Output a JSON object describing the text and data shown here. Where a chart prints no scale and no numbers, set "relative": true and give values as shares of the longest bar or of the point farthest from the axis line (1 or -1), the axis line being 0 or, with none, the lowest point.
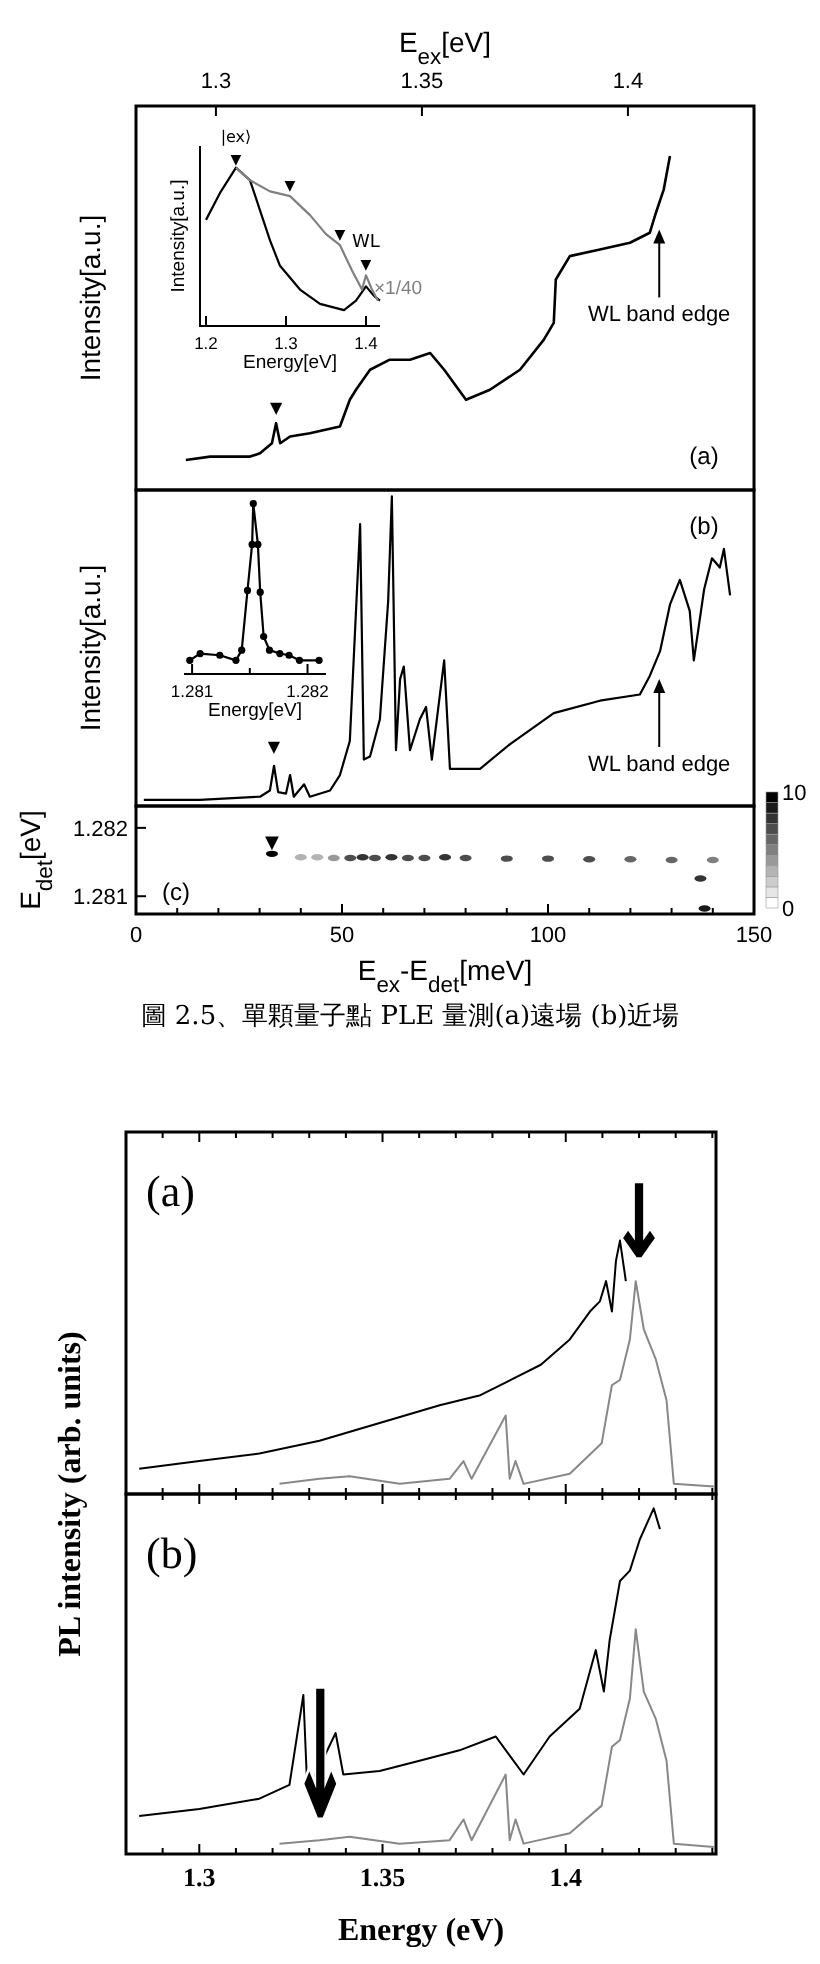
{
  "chart_data": [
    {
      "type": "line",
      "relative": true,
      "xlim": [
        0,
        150
      ],
      "x2lim": [
        1.2806,
        1.4306
      ],
      "x2ticks": [
        1.3,
        1.35,
        1.4
      ],
      "x2label": "E$_{ex}$[eV]",
      "ylabel": "Intensity[a.u.]",
      "tick_labels": false,
      "annotations": [
        "(a)",
        {
          "text": "WL band edge",
          "x": 127,
          "y": 0.78
        },
        {
          "text": "▼",
          "x": 34,
          "y": 0.22
        }
      ],
      "series": [
        {
          "color": "#000000",
          "x": [
            12.1,
            18.0,
            27.7,
            30.1,
            33.0,
            34.0,
            35.0,
            37.4,
            42.2,
            49.5,
            51.9,
            53.4,
            56.8,
            61.6,
            66.5,
            71.4,
            74.8,
            80.1,
            85.9,
            93.2,
            99.0,
            101.4,
            101.9,
            105.3,
            112.6,
            119.9,
            124.7,
            126.2,
            128.1,
            129.6
          ],
          "values": [
            0.09,
            0.1,
            0.1,
            0.11,
            0.14,
            0.2,
            0.14,
            0.16,
            0.17,
            0.19,
            0.27,
            0.3,
            0.36,
            0.39,
            0.39,
            0.41,
            0.36,
            0.27,
            0.3,
            0.36,
            0.45,
            0.5,
            0.63,
            0.7,
            0.72,
            0.74,
            0.77,
            0.83,
            0.9,
            1.0
          ]
        }
      ]
    },
    {
      "type": "line",
      "relative": true,
      "xlim": [
        1.1925,
        1.4175
      ],
      "xticks": [
        1.2,
        1.3,
        1.4
      ],
      "xlabel": "Energy[eV]",
      "ylabel": "Intensity[a.u.]",
      "annotations": [
        {
          "text": "|ex⟩",
          "x": 1.2375,
          "y": 1.0
        },
        {
          "text": "▼",
          "x": 1.2375,
          "y": 1.0
        },
        {
          "text": "▼",
          "x": 1.305,
          "y": 0.82
        },
        {
          "text": "▼",
          "x": 1.3675,
          "y": 0.51
        },
        {
          "text": "▼",
          "x": 1.4,
          "y": 0.32
        },
        {
          "text": "WL",
          "x": 1.4,
          "y": 0.32
        }
      ],
      "series": [
        {
          "color": "#000000",
          "x": [
            1.2,
            1.2175,
            1.2375,
            1.255,
            1.2675,
            1.28,
            1.2925,
            1.3175,
            1.3425,
            1.3725,
            1.3875,
            1.4,
            1.41,
            1.4175
          ],
          "values": [
            0.67,
            0.84,
            1.0,
            0.92,
            0.73,
            0.54,
            0.38,
            0.23,
            0.14,
            0.1,
            0.16,
            0.25,
            0.19,
            0.16
          ]
        },
        {
          "name": "×1/40",
          "color": "#808080",
          "x": [
            1.2375,
            1.255,
            1.28,
            1.305,
            1.33,
            1.35,
            1.3675,
            1.3825,
            1.395,
            1.4,
            1.4075,
            1.415
          ],
          "values": [
            1.0,
            0.92,
            0.85,
            0.82,
            0.7,
            0.58,
            0.51,
            0.35,
            0.23,
            0.32,
            0.23,
            0.16
          ]
        }
      ]
    },
    {
      "type": "line",
      "relative": true,
      "xlim": [
        0,
        150
      ],
      "ylabel": "Intensity[a.u.]",
      "tick_labels": false,
      "annotations": [
        "(b)",
        {
          "text": "WL band edge",
          "x": 127,
          "y": 0.41
        },
        {
          "text": "▼",
          "x": 33.5,
          "y": 0.13
        }
      ],
      "series": [
        {
          "color": "#000000",
          "x": [
            1.9,
            15.5,
            30.1,
            32.5,
            33.5,
            34.5,
            36.4,
            37.4,
            38.3,
            40.8,
            42.2,
            47.1,
            49.5,
            51.9,
            54.4,
            55.3,
            56.8,
            59.2,
            61.2,
            62.1,
            63.1,
            64.1,
            65.0,
            66.5,
            68.9,
            70.4,
            71.8,
            74.8,
            76.2,
            83.5,
            90.8,
            101.4,
            112.6,
            122.3,
            124.7,
            127.2,
            129.6,
            132.0,
            134.4,
            135.4,
            137.9,
            139.8,
            141.7,
            142.7,
            144.2
          ],
          "values": [
            0.02,
            0.02,
            0.03,
            0.05,
            0.13,
            0.045,
            0.04,
            0.1,
            0.03,
            0.07,
            0.03,
            0.05,
            0.1,
            0.21,
            0.91,
            0.15,
            0.16,
            0.28,
            0.66,
            1.0,
            0.18,
            0.41,
            0.45,
            0.18,
            0.28,
            0.32,
            0.15,
            0.47,
            0.12,
            0.12,
            0.2,
            0.3,
            0.34,
            0.36,
            0.42,
            0.5,
            0.65,
            0.73,
            0.63,
            0.47,
            0.7,
            0.8,
            0.77,
            0.83,
            0.68
          ]
        }
      ]
    },
    {
      "type": "line",
      "relative": true,
      "xlim": [
        1.28093,
        1.28216
      ],
      "xticks": [
        1.281,
        {
          "value": 1.2815,
          "label": null
        },
        1.282
      ],
      "xlabel": "Energy[eV]",
      "marker": "circle",
      "series": [
        {
          "color": "#000000",
          "x": [
            1.28098,
            1.28107,
            1.28124,
            1.28138,
            1.28143,
            1.28148,
            1.28152,
            1.28153,
            1.28157,
            1.28159,
            1.28162,
            1.28167,
            1.28176,
            1.28184,
            1.28193,
            1.2821
          ],
          "values": [
            0.08,
            0.12,
            0.11,
            0.08,
            0.14,
            0.49,
            0.76,
            1.0,
            0.76,
            0.48,
            0.22,
            0.14,
            0.12,
            0.11,
            0.08,
            0.08
          ]
        }
      ]
    },
    {
      "type": "scatter",
      "xlim": [
        0,
        150
      ],
      "ylim": [
        1.28074,
        1.28232
      ],
      "xticks": [
        0,
        {
          "value": 10,
          "label": null
        },
        {
          "value": 20,
          "label": null
        },
        {
          "value": 30,
          "label": null
        },
        {
          "value": 40,
          "label": null
        },
        50,
        {
          "value": 60,
          "label": null
        },
        {
          "value": 70,
          "label": null
        },
        {
          "value": 80,
          "label": null
        },
        {
          "value": 90,
          "label": null
        },
        100,
        {
          "value": 110,
          "label": null
        },
        {
          "value": 120,
          "label": null
        },
        {
          "value": 130,
          "label": null
        },
        {
          "value": 140,
          "label": null
        },
        150
      ],
      "yticks": [
        1.281,
        1.282
      ],
      "xlabel": "E$_{ex}$-E$_{det}$[meV]",
      "ylabel": "E$_{det}$[eV]",
      "clim": [
        0,
        10
      ],
      "cticks": [
        0,
        10
      ],
      "annotations": [
        "(c)",
        {
          "text": "▼",
          "x": 33,
          "y": 1.28162
        },
        "圖 2.5、單顆量子點 PLE 量測(a)遠場 (b)近場"
      ],
      "series": [
        {
          "x": [
            33,
            40,
            44,
            48,
            52,
            55,
            58,
            62,
            66,
            70,
            75,
            80,
            90,
            100,
            110,
            120,
            130,
            140,
            137,
            138
          ],
          "values": [
            1.28162,
            1.28157,
            1.28157,
            1.28156,
            1.28156,
            1.28157,
            1.28156,
            1.28157,
            1.28156,
            1.28156,
            1.28157,
            1.28156,
            1.28155,
            1.28155,
            1.28154,
            1.28154,
            1.28153,
            1.28153,
            1.28126,
            1.28082
          ],
          "cvalues": [
            10,
            3,
            3,
            4,
            7,
            8,
            7,
            8,
            7,
            7,
            8,
            7,
            7,
            7,
            7,
            6,
            6,
            5,
            8,
            9
          ]
        }
      ]
    },
    {
      "type": "line",
      "relative": true,
      "xlim": [
        1.28,
        1.441
      ],
      "tick_labels": false,
      "xticks": [
        {
          "value": 1.29,
          "label": null
        },
        1.3,
        {
          "value": 1.31,
          "label": null
        },
        {
          "value": 1.32,
          "label": null
        },
        {
          "value": 1.33,
          "label": null
        },
        {
          "value": 1.34,
          "label": null
        },
        1.35,
        {
          "value": 1.36,
          "label": null
        },
        {
          "value": 1.37,
          "label": null
        },
        {
          "value": 1.38,
          "label": null
        },
        {
          "value": 1.39,
          "label": null
        },
        1.4,
        {
          "value": 1.41,
          "label": null
        },
        {
          "value": 1.42,
          "label": null
        },
        {
          "value": 1.43,
          "label": null
        },
        {
          "value": 1.44,
          "label": null
        }
      ],
      "annotations": [
        "(a)",
        {
          "text": "↓",
          "x": 1.42,
          "y": 0.84
        }
      ],
      "series": [
        {
          "color": "#000000",
          "x": [
            1.2836,
            1.3,
            1.3164,
            1.3328,
            1.3492,
            1.3656,
            1.3767,
            1.385,
            1.3932,
            1.4011,
            1.4066,
            1.4093,
            1.411,
            1.4126,
            1.4137,
            1.4148,
            1.4164
          ],
          "values": [
            0.1,
            0.13,
            0.16,
            0.21,
            0.28,
            0.35,
            0.39,
            0.45,
            0.51,
            0.61,
            0.72,
            0.76,
            0.84,
            0.72,
            0.92,
            1.0,
            0.84
          ]
        },
        {
          "color": "#888888",
          "x": [
            1.3219,
            1.3328,
            1.341,
            1.3547,
            1.3683,
            1.3721,
            1.3743,
            1.3836,
            1.3847,
            1.3863,
            1.3885,
            1.4011,
            1.4098,
            1.4126,
            1.4148,
            1.4175,
            1.4191,
            1.4213,
            1.4246,
            1.4275,
            1.4295,
            1.4404
          ],
          "values": [
            0.04,
            0.06,
            0.07,
            0.04,
            0.06,
            0.13,
            0.06,
            0.31,
            0.06,
            0.13,
            0.04,
            0.08,
            0.2,
            0.43,
            0.45,
            0.61,
            0.84,
            0.65,
            0.53,
            0.37,
            0.04,
            0.03
          ]
        }
      ]
    },
    {
      "type": "line",
      "relative": true,
      "xlim": [
        1.28,
        1.441
      ],
      "xticks": [
        {
          "value": 1.29,
          "label": null
        },
        1.3,
        {
          "value": 1.31,
          "label": null
        },
        {
          "value": 1.32,
          "label": null
        },
        {
          "value": 1.33,
          "label": null
        },
        {
          "value": 1.34,
          "label": null
        },
        1.35,
        {
          "value": 1.36,
          "label": null
        },
        {
          "value": 1.37,
          "label": null
        },
        {
          "value": 1.38,
          "label": null
        },
        {
          "value": 1.39,
          "label": null
        },
        1.4,
        {
          "value": 1.41,
          "label": null
        },
        {
          "value": 1.42,
          "label": null
        },
        {
          "value": 1.43,
          "label": null
        },
        {
          "value": 1.44,
          "label": null
        }
      ],
      "tick_labels": "x",
      "xlabel": "Energy  (eV)",
      "ylabel": "PL intensity  (arb. units)",
      "annotations": [
        "(b)",
        {
          "text": "↓",
          "x": 1.333,
          "y": 0.05
        }
      ],
      "series": [
        {
          "color": "#000000",
          "x": [
            1.2836,
            1.3,
            1.3164,
            1.3246,
            1.3284,
            1.3295,
            1.3372,
            1.3393,
            1.3492,
            1.3601,
            1.371,
            1.3809,
            1.3885,
            1.3956,
            1.4038,
            1.4082,
            1.4104,
            1.412,
            1.4148,
            1.4175,
            1.4202,
            1.424,
            1.4257
          ],
          "values": [
            0.11,
            0.13,
            0.16,
            0.2,
            0.46,
            0.18,
            0.35,
            0.23,
            0.24,
            0.27,
            0.3,
            0.34,
            0.23,
            0.34,
            0.42,
            0.59,
            0.47,
            0.62,
            0.79,
            0.82,
            0.91,
            1.0,
            0.94
          ]
        },
        {
          "color": "#888888",
          "x": [
            1.3219,
            1.3328,
            1.341,
            1.3547,
            1.3683,
            1.3721,
            1.3743,
            1.3836,
            1.3847,
            1.3863,
            1.3885,
            1.4011,
            1.4098,
            1.4126,
            1.4148,
            1.4175,
            1.4191,
            1.4213,
            1.4246,
            1.4275,
            1.4295,
            1.4404
          ],
          "values": [
            0.03,
            0.04,
            0.05,
            0.03,
            0.04,
            0.1,
            0.04,
            0.23,
            0.04,
            0.1,
            0.03,
            0.06,
            0.14,
            0.31,
            0.33,
            0.45,
            0.65,
            0.47,
            0.39,
            0.27,
            0.03,
            0.02
          ]
        }
      ]
    }
  ]
}
